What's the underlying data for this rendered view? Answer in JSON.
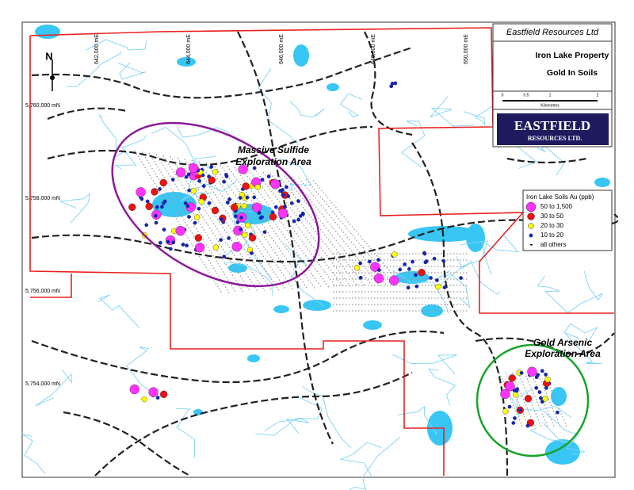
{
  "title_block": {
    "company": "Eastfield Resources Ltd",
    "property": "Iron Lake Property",
    "subject": "Gold In Soils",
    "scale_labels": [
      "0",
      "0.5",
      "1",
      "2"
    ],
    "scale_unit": "Kilometres",
    "logo": {
      "name": "EASTFIELD",
      "sub": "RESOURCES LTD."
    }
  },
  "north_arrow": "N",
  "grid_labels": {
    "eastings": [
      "642,000 mE",
      "644,000 mE",
      "646,000 mE",
      "648,000 mE",
      "650,000 mE"
    ],
    "northings": [
      "5,760,000 mN",
      "5,758,000 mN",
      "5,756,000 mN",
      "5,754,000 mN"
    ]
  },
  "areas": [
    {
      "label_lines": [
        "Massive Sulfide",
        "Exploration Area"
      ],
      "color": "#8b1a9b"
    },
    {
      "label_lines": [
        "Gold Arsenic",
        "Exploration Area"
      ],
      "color": "#1aa32a"
    }
  ],
  "legend": {
    "title": "Iron Lake Soils Au (ppb)",
    "items": [
      {
        "label": "50  to  1,500",
        "color": "#ff33ff"
      },
      {
        "label": "30  to  50",
        "color": "#ee1111"
      },
      {
        "label": "20  to  30",
        "color": "#ffff00"
      },
      {
        "label": "10  to  20",
        "color": "#1122cc"
      },
      {
        "label": "all others",
        "color": "#000000"
      }
    ]
  }
}
